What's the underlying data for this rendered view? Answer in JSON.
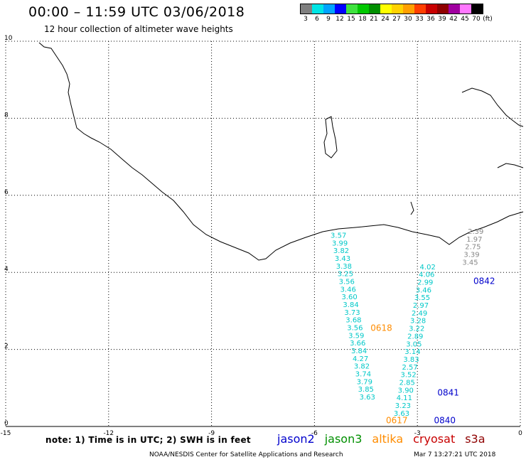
{
  "title": "00:00 – 11:59 UTC 03/06/2018",
  "subtitle": "12 hour collection of altimeter wave heights",
  "legend": {
    "unit": "(ft)",
    "swatches": [
      {
        "label": "3",
        "color": "#7f7f7f"
      },
      {
        "label": "6",
        "color": "#00e5e5"
      },
      {
        "label": "9",
        "color": "#00a3ff"
      },
      {
        "label": "12",
        "color": "#0000ff"
      },
      {
        "label": "15",
        "color": "#3fe23f"
      },
      {
        "label": "18",
        "color": "#00c800"
      },
      {
        "label": "21",
        "color": "#008f00"
      },
      {
        "label": "24",
        "color": "#ffff00"
      },
      {
        "label": "27",
        "color": "#ffd200"
      },
      {
        "label": "30",
        "color": "#ff9f00"
      },
      {
        "label": "33",
        "color": "#ff3f00"
      },
      {
        "label": "36",
        "color": "#c80000"
      },
      {
        "label": "39",
        "color": "#8f0000"
      },
      {
        "label": "42",
        "color": "#a000a0"
      },
      {
        "label": "45",
        "color": "#ff78ff"
      },
      {
        "label": "70",
        "color": "#000000"
      }
    ]
  },
  "map": {
    "lon_range": [
      -15,
      0
    ],
    "lat_range": [
      0,
      10
    ],
    "x_ticks": [
      "-15",
      "-12",
      "-9",
      "-6",
      "-3",
      "0"
    ],
    "y_ticks": [
      "0",
      "2",
      "4",
      "6",
      "8",
      "10"
    ]
  },
  "chart_data": {
    "type": "scatter",
    "xlabel": "",
    "ylabel": "",
    "xlim": [
      -15,
      0
    ],
    "ylim": [
      0,
      10
    ],
    "grid": true,
    "tracks": [
      {
        "color": "#00c8c8",
        "lon": [
          -5.3,
          -5.26,
          -5.22,
          -5.18,
          -5.14,
          -5.1,
          -5.06,
          -5.02,
          -4.98,
          -4.94,
          -4.9,
          -4.86,
          -4.82,
          -4.78,
          -4.74,
          -4.7,
          -4.66,
          -4.62,
          -4.58,
          -4.54,
          -4.5,
          -4.46
        ],
        "lat": [
          4.9,
          4.7,
          4.5,
          4.3,
          4.1,
          3.9,
          3.7,
          3.5,
          3.3,
          3.1,
          2.9,
          2.7,
          2.5,
          2.3,
          2.1,
          1.9,
          1.7,
          1.5,
          1.3,
          1.1,
          0.9,
          0.7
        ],
        "values": [
          "3.57",
          "3.99",
          "3.82",
          "3.43",
          "3.38",
          "3.25",
          "3.56",
          "3.46",
          "3.60",
          "3.84",
          "3.73",
          "3.68",
          "3.56",
          "3.59",
          "3.66",
          "3.84",
          "4.27",
          "3.82",
          "3.74",
          "3.79",
          "3.85",
          "3.63"
        ]
      },
      {
        "color": "#00c8c8",
        "lon": [
          -2.7,
          -2.73,
          -2.77,
          -2.82,
          -2.86,
          -2.9,
          -2.94,
          -2.98,
          -3.02,
          -3.06,
          -3.1,
          -3.14,
          -3.18,
          -3.22,
          -3.26,
          -3.3,
          -3.34,
          -3.38,
          -3.42,
          -3.46
        ],
        "lat": [
          4.08,
          3.88,
          3.68,
          3.48,
          3.28,
          3.08,
          2.88,
          2.68,
          2.48,
          2.28,
          2.08,
          1.88,
          1.68,
          1.48,
          1.28,
          1.08,
          0.88,
          0.68,
          0.48,
          0.28
        ],
        "values": [
          "4.02",
          "4.06",
          "2.99",
          "3.46",
          "3.55",
          "2.97",
          "2.49",
          "3.28",
          "3.22",
          "2.89",
          "3.05",
          "3.14",
          "3.83",
          "2.57",
          "3.52",
          "2.85",
          "3.90",
          "4.11",
          "3.23",
          "3.63"
        ]
      },
      {
        "color": "#888888",
        "lon": [
          -1.3,
          -1.34,
          -1.38,
          -1.42,
          -1.46
        ],
        "lat": [
          5.0,
          4.8,
          4.6,
          4.4,
          4.2
        ],
        "values": [
          "2.39",
          "1.97",
          "2.75",
          "3.39",
          "3.45"
        ]
      }
    ],
    "pass_labels": [
      {
        "text": "0618",
        "lon": -4.05,
        "lat": 2.48,
        "color": "#ff8c00"
      },
      {
        "text": "0617",
        "lon": -3.6,
        "lat": 0.08,
        "color": "#ff8c00"
      },
      {
        "text": "0842",
        "lon": -1.05,
        "lat": 3.7,
        "color": "#0000cc"
      },
      {
        "text": "0841",
        "lon": -2.1,
        "lat": 0.8,
        "color": "#0000cc"
      },
      {
        "text": "0840",
        "lon": -2.2,
        "lat": 0.08,
        "color": "#0000cc"
      }
    ]
  },
  "note": "note:  1) Time is in UTC;  2) SWH is in feet",
  "missions": [
    {
      "name": "jason2",
      "color": "#0000cc"
    },
    {
      "name": "jason3",
      "color": "#008f00"
    },
    {
      "name": "altika",
      "color": "#ff8c00"
    },
    {
      "name": "cryosat",
      "color": "#c80000"
    },
    {
      "name": "s3a",
      "color": "#8f0000"
    }
  ],
  "credit": "NOAA/NESDIS Center for Satellite Applications and Research",
  "timestamp": "Mar  7 13:27:21 UTC 2018"
}
